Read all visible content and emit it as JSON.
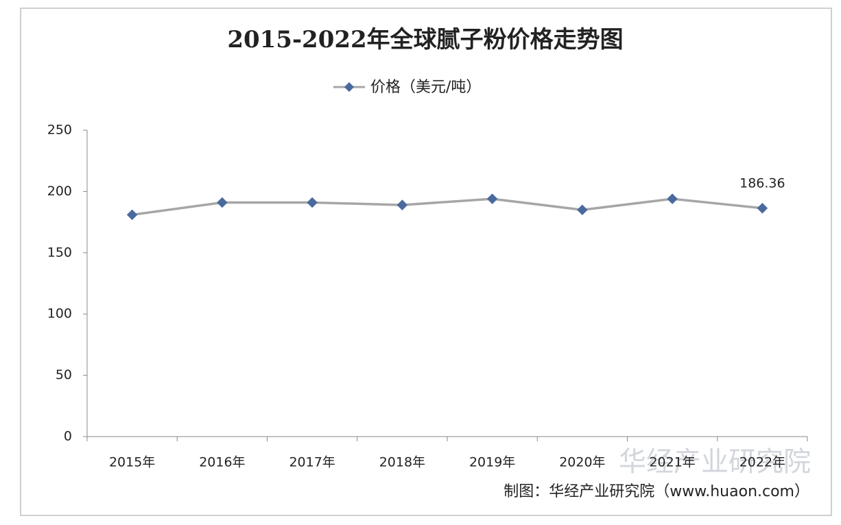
{
  "chart_data": {
    "type": "line",
    "title": "2015-2022年全球腻子粉价格走势图",
    "categories": [
      "2015年",
      "2016年",
      "2017年",
      "2018年",
      "2019年",
      "2020年",
      "2021年",
      "2022年"
    ],
    "series": [
      {
        "name": "价格（美元/吨）",
        "color": "#a6a6a6",
        "marker_color": "#4a6a9e",
        "values": [
          181,
          191,
          191,
          189,
          194,
          185,
          194,
          186.36
        ]
      }
    ],
    "data_labels": "last",
    "ylim": [
      0,
      250
    ],
    "yticks": [
      0,
      50,
      100,
      150,
      200,
      250
    ],
    "legend": "top",
    "source": "制图：华经产业研究院（www.huaon.com）",
    "watermark": "华经产业研究院"
  }
}
